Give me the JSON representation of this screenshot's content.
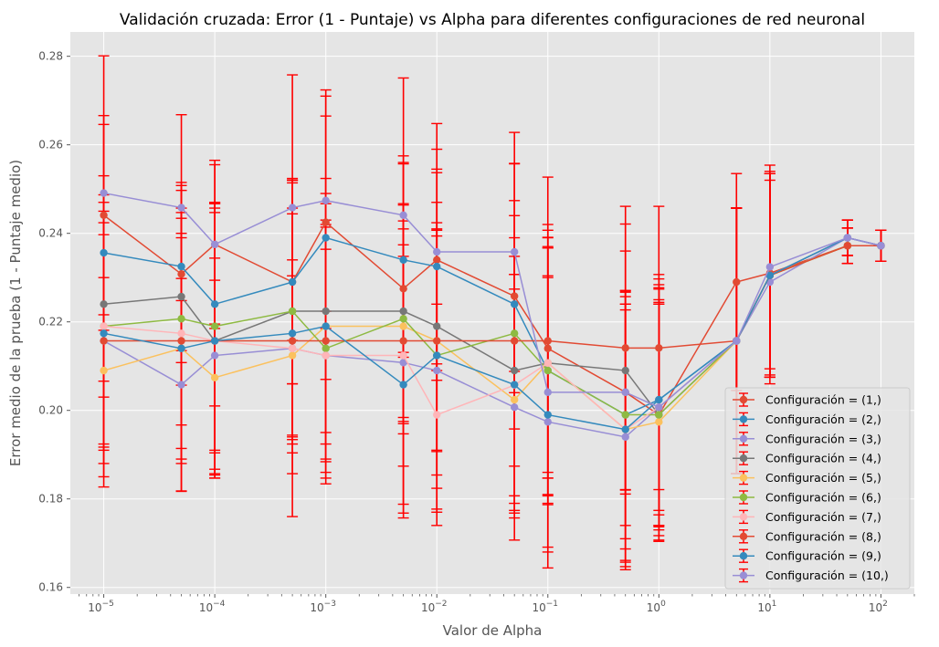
{
  "chart_data": {
    "type": "line",
    "title": "Validación cruzada: Error (1 - Puntaje) vs Alpha para diferentes configuraciones de red neuronal",
    "xlabel": "Valor de Alpha",
    "ylabel": "Error medio de la prueba (1 - Puntaje medio)",
    "xscale": "log",
    "xlim": [
      5e-06,
      200
    ],
    "ylim": [
      0.1585,
      0.2855
    ],
    "grid": true,
    "legend_position": "lower-right",
    "x": [
      1e-05,
      5e-05,
      0.0001,
      0.0005,
      0.001,
      0.005,
      0.01,
      0.05,
      0.1,
      0.5,
      1,
      5,
      10,
      50,
      100
    ],
    "x_ticks": [
      {
        "value": 1e-05,
        "base": "10",
        "exp": "−5"
      },
      {
        "value": 0.0001,
        "base": "10",
        "exp": "−4"
      },
      {
        "value": 0.001,
        "base": "10",
        "exp": "−3"
      },
      {
        "value": 0.01,
        "base": "10",
        "exp": "−2"
      },
      {
        "value": 0.1,
        "base": "10",
        "exp": "−1"
      },
      {
        "value": 1,
        "base": "10",
        "exp": "0"
      },
      {
        "value": 10,
        "base": "10",
        "exp": "1"
      },
      {
        "value": 100,
        "base": "10",
        "exp": "2"
      }
    ],
    "y_ticks": [
      "0.16",
      "0.18",
      "0.20",
      "0.22",
      "0.24",
      "0.26",
      "0.28"
    ],
    "error_color": "#ff0000",
    "series": [
      {
        "name": "Configuración = (1,)",
        "color": "#e24a33",
        "values": [
          0.2441,
          0.2308,
          0.2375,
          0.229,
          0.2425,
          0.2275,
          0.234,
          0.2258,
          0.214,
          0.2041,
          0.199,
          0.229,
          0.231,
          0.2372,
          0.2372
        ],
        "errors": [
          0.0225,
          0.02,
          0.019,
          0.023,
          0.024,
          0.03,
          0.025,
          0.03,
          0.028,
          0.023,
          0.025,
          0.0245,
          0.023,
          0.004,
          0.0035
        ]
      },
      {
        "name": "Configuración = (2,)",
        "color": "#348abd",
        "values": [
          0.2356,
          0.2325,
          0.224,
          0.229,
          0.239,
          0.234,
          0.2325,
          0.224,
          0.209,
          0.199,
          0.2024,
          0.2157,
          0.2305,
          0.239,
          0.2372
        ],
        "errors": [
          0.029,
          0.019,
          0.023,
          0.023,
          0.032,
          0.022,
          0.022,
          0.02,
          0.03,
          0.028,
          0.025,
          0.03,
          0.023,
          0.004,
          0.0035
        ]
      },
      {
        "name": "Configuración = (3,)",
        "color": "#988ed5",
        "values": [
          0.2157,
          0.2058,
          0.2124,
          0.214,
          0.2124,
          0.2108,
          0.209,
          0.2007,
          0.1974,
          0.194,
          0.2007,
          0.2157,
          0.229,
          0.239,
          0.2372
        ],
        "errors": [
          0.024,
          0.024,
          0.022,
          0.02,
          0.024,
          0.032,
          0.032,
          0.03,
          0.033,
          0.03,
          0.027,
          0.03,
          0.023,
          0.004,
          0.0035
        ]
      },
      {
        "name": "Configuración = (4,)",
        "color": "#777777",
        "values": [
          0.224,
          0.2257,
          0.2157,
          0.2224,
          0.2224,
          0.2224,
          0.219,
          0.209,
          0.2107,
          0.209,
          0.199,
          0.2157,
          0.2305,
          0.2372,
          0.2372
        ],
        "errors": [
          0.021,
          0.02,
          0.031,
          0.029,
          0.03,
          0.024,
          0.028,
          0.03,
          0.03,
          0.027,
          0.025,
          0.03,
          0.023,
          0.004,
          0.0035
        ]
      },
      {
        "name": "Configuración = (5,)",
        "color": "#fbc15e",
        "values": [
          0.209,
          0.214,
          0.2074,
          0.2124,
          0.219,
          0.219,
          0.2157,
          0.2024,
          0.2107,
          0.1957,
          0.1974,
          0.2157,
          0.2305,
          0.2372,
          0.2372
        ],
        "errors": [
          0.021,
          0.025,
          0.022,
          0.018,
          0.024,
          0.022,
          0.025,
          0.025,
          0.026,
          0.031,
          0.027,
          0.03,
          0.023,
          0.004,
          0.0035
        ]
      },
      {
        "name": "Configuración = (6,)",
        "color": "#8eba42",
        "values": [
          0.219,
          0.2207,
          0.219,
          0.2224,
          0.214,
          0.2207,
          0.2124,
          0.2174,
          0.209,
          0.199,
          0.199,
          0.2157,
          0.2305,
          0.2372,
          0.2372
        ],
        "errors": [
          0.034,
          0.024,
          0.028,
          0.03,
          0.028,
          0.026,
          0.027,
          0.03,
          0.028,
          0.025,
          0.026,
          0.03,
          0.023,
          0.004,
          0.0035
        ]
      },
      {
        "name": "Configuración = (7,)",
        "color": "#ffb5b8",
        "values": [
          0.219,
          0.2174,
          0.2157,
          0.214,
          0.2124,
          0.2124,
          0.199,
          0.2057,
          0.2107,
          0.1957,
          0.2007,
          0.2157,
          0.2305,
          0.239,
          0.2372
        ],
        "errors": [
          0.028,
          0.026,
          0.03,
          0.038,
          0.029,
          0.025,
          0.025,
          0.025,
          0.026,
          0.027,
          0.029,
          0.03,
          0.023,
          0.004,
          0.0035
        ]
      },
      {
        "name": "Configuración = (8,)",
        "color": "#e24a33",
        "values": [
          0.2157,
          0.2157,
          0.2157,
          0.2157,
          0.2157,
          0.2157,
          0.2157,
          0.2157,
          0.2157,
          0.2141,
          0.2141,
          0.2157,
          0.2305,
          0.2372,
          0.2372
        ],
        "errors": [
          0.033,
          0.034,
          0.031,
          0.03,
          0.031,
          0.04,
          0.038,
          0.04,
          0.037,
          0.032,
          0.032,
          0.03,
          0.023,
          0.004,
          0.0035
        ]
      },
      {
        "name": "Configuración = (9,)",
        "color": "#348abd",
        "values": [
          0.2174,
          0.214,
          0.2157,
          0.2174,
          0.219,
          0.2058,
          0.2124,
          0.2058,
          0.199,
          0.1957,
          0.2024,
          0.2157,
          0.2305,
          0.239,
          0.2372
        ],
        "errors": [
          0.025,
          0.026,
          0.029,
          0.027,
          0.03,
          0.029,
          0.03,
          0.029,
          0.031,
          0.03,
          0.026,
          0.03,
          0.023,
          0.004,
          0.0035
        ]
      },
      {
        "name": "Configuración = (10,)",
        "color": "#988ed5",
        "values": [
          0.2491,
          0.2458,
          0.2375,
          0.2458,
          0.2474,
          0.2441,
          0.2358,
          0.2358,
          0.2041,
          0.2041,
          0.2007,
          0.2157,
          0.2324,
          0.239,
          0.2372
        ],
        "errors": [
          0.031,
          0.021,
          0.018,
          0.03,
          0.025,
          0.031,
          0.029,
          0.027,
          0.035,
          0.038,
          0.03,
          0.03,
          0.023,
          0.004,
          0.0035
        ]
      }
    ]
  }
}
